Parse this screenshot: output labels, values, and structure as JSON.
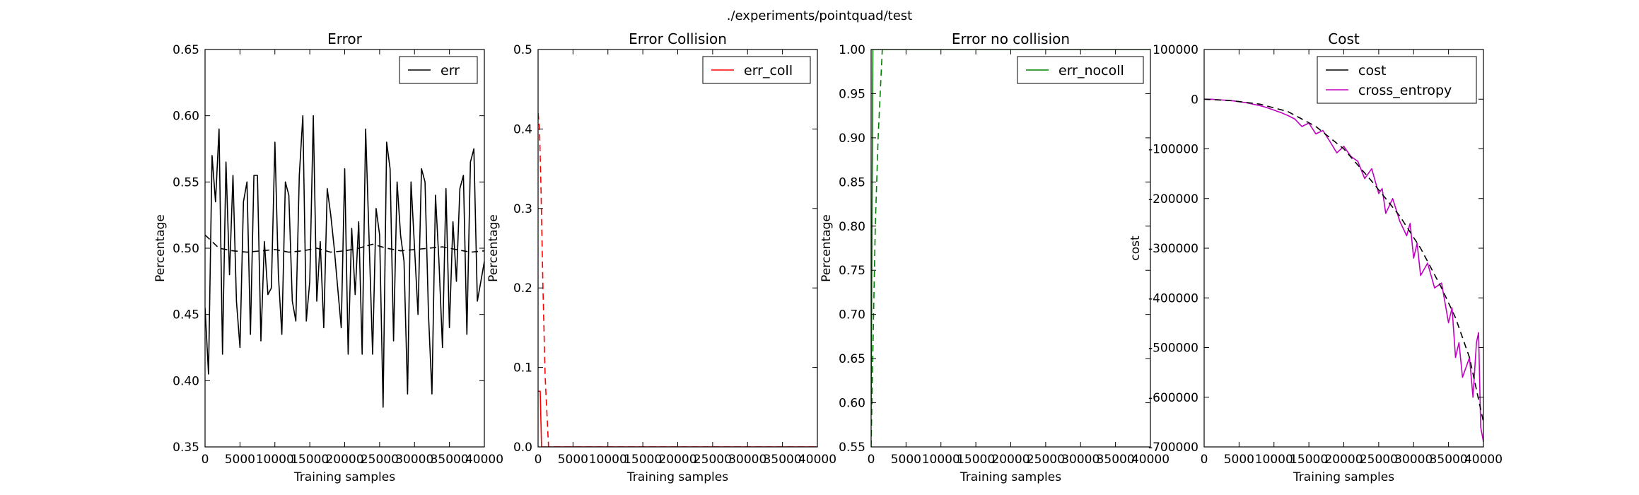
{
  "figure": {
    "suptitle": "./experiments/pointquad/test"
  },
  "chart_data": [
    {
      "type": "line",
      "title": "Error",
      "xlabel": "Training samples",
      "ylabel": "Percentage",
      "xlim": [
        0,
        40000
      ],
      "ylim": [
        0.35,
        0.65
      ],
      "xticks": [
        "0",
        "5000",
        "10000",
        "15000",
        "20000",
        "25000",
        "30000",
        "35000",
        "40000"
      ],
      "yticks": [
        "0.35",
        "0.40",
        "0.45",
        "0.50",
        "0.55",
        "0.60",
        "0.65"
      ],
      "legend_position": "top-right",
      "series": [
        {
          "name": "err",
          "color": "#000000",
          "style": "solid",
          "x": [
            0,
            500,
            1000,
            1500,
            2000,
            2500,
            3000,
            3500,
            4000,
            4500,
            5000,
            5500,
            6000,
            6500,
            7000,
            7500,
            8000,
            8500,
            9000,
            9500,
            10000,
            10500,
            11000,
            11500,
            12000,
            12500,
            13000,
            13500,
            14000,
            14500,
            15000,
            15500,
            16000,
            16500,
            17000,
            17500,
            18000,
            18500,
            19000,
            19500,
            20000,
            20500,
            21000,
            21500,
            22000,
            22500,
            23000,
            23500,
            24000,
            24500,
            25000,
            25500,
            26000,
            26500,
            27000,
            27500,
            28000,
            28500,
            29000,
            29500,
            30000,
            30500,
            31000,
            31500,
            32000,
            32500,
            33000,
            33500,
            34000,
            34500,
            35000,
            35500,
            36000,
            36500,
            37000,
            37500,
            38000,
            38500,
            39000,
            39500,
            40000
          ],
          "y": [
            0.455,
            0.405,
            0.57,
            0.535,
            0.59,
            0.42,
            0.565,
            0.48,
            0.555,
            0.46,
            0.425,
            0.535,
            0.55,
            0.435,
            0.555,
            0.555,
            0.43,
            0.505,
            0.465,
            0.47,
            0.58,
            0.48,
            0.435,
            0.55,
            0.54,
            0.46,
            0.445,
            0.555,
            0.6,
            0.445,
            0.475,
            0.6,
            0.46,
            0.505,
            0.44,
            0.545,
            0.525,
            0.5,
            0.47,
            0.44,
            0.56,
            0.42,
            0.515,
            0.465,
            0.52,
            0.42,
            0.59,
            0.505,
            0.42,
            0.53,
            0.51,
            0.38,
            0.58,
            0.56,
            0.43,
            0.55,
            0.51,
            0.49,
            0.39,
            0.55,
            0.5,
            0.45,
            0.56,
            0.55,
            0.45,
            0.39,
            0.54,
            0.49,
            0.425,
            0.545,
            0.44,
            0.52,
            0.475,
            0.545,
            0.555,
            0.435,
            0.565,
            0.575,
            0.46,
            0.475,
            0.49
          ]
        },
        {
          "name": "",
          "color": "#000000",
          "style": "dashed",
          "x": [
            0,
            1000,
            2000,
            4000,
            6000,
            8000,
            10000,
            12000,
            14000,
            16000,
            18000,
            20000,
            22000,
            24000,
            26000,
            28000,
            30000,
            32000,
            34000,
            36000,
            38000,
            40000
          ],
          "y": [
            0.51,
            0.505,
            0.5,
            0.498,
            0.497,
            0.498,
            0.499,
            0.497,
            0.498,
            0.5,
            0.497,
            0.498,
            0.5,
            0.503,
            0.5,
            0.498,
            0.499,
            0.5,
            0.501,
            0.499,
            0.497,
            0.498
          ]
        }
      ]
    },
    {
      "type": "line",
      "title": "Error Collision",
      "xlabel": "Training samples",
      "ylabel": "Percentage",
      "xlim": [
        0,
        40000
      ],
      "ylim": [
        0.0,
        0.5
      ],
      "xticks": [
        "0",
        "5000",
        "10000",
        "15000",
        "20000",
        "25000",
        "30000",
        "35000",
        "40000"
      ],
      "yticks": [
        "0.0",
        "0.1",
        "0.2",
        "0.3",
        "0.4",
        "0.5"
      ],
      "legend_position": "top-right",
      "series": [
        {
          "name": "err_coll",
          "color": "#ff0000",
          "style": "solid",
          "x": [
            0,
            300,
            500,
            700,
            40000
          ],
          "y": [
            0.07,
            0.07,
            0.0,
            0.0,
            0.0
          ]
        },
        {
          "name": "",
          "color": "#ff0000",
          "style": "dashed",
          "x": [
            0,
            200,
            400,
            700,
            1000,
            1500,
            40000
          ],
          "y": [
            0.42,
            0.4,
            0.33,
            0.2,
            0.09,
            0.0,
            0.0
          ]
        }
      ]
    },
    {
      "type": "line",
      "title": "Error no collision",
      "xlabel": "Training samples",
      "ylabel": "Percentage",
      "xlim": [
        0,
        40000
      ],
      "ylim": [
        0.55,
        1.0
      ],
      "xticks": [
        "0",
        "5000",
        "10000",
        "15000",
        "20000",
        "25000",
        "30000",
        "35000",
        "40000"
      ],
      "yticks": [
        "0.55",
        "0.60",
        "0.65",
        "0.70",
        "0.75",
        "0.80",
        "0.85",
        "0.90",
        "0.95",
        "1.00"
      ],
      "legend_position": "top-right",
      "series": [
        {
          "name": "err_nocoll",
          "color": "#008000",
          "style": "solid",
          "x": [
            0,
            250,
            500,
            40000
          ],
          "y": [
            0.59,
            1.0,
            1.0,
            1.0
          ]
        },
        {
          "name": "",
          "color": "#008000",
          "style": "dashed",
          "x": [
            0,
            300,
            600,
            1000,
            1600
          ],
          "y": [
            0.55,
            0.68,
            0.8,
            0.9,
            1.0
          ]
        }
      ]
    },
    {
      "type": "line",
      "title": "Cost",
      "xlabel": "Training samples",
      "ylabel": "cost",
      "xlim": [
        0,
        40000
      ],
      "ylim": [
        -700000,
        100000
      ],
      "xticks": [
        "0",
        "5000",
        "10000",
        "15000",
        "20000",
        "25000",
        "30000",
        "35000",
        "40000"
      ],
      "yticks": [
        "-700000",
        "-600000",
        "-500000",
        "-400000",
        "-300000",
        "-200000",
        "-100000",
        "0",
        "100000"
      ],
      "legend_position": "top-right",
      "series": [
        {
          "name": "cost",
          "color": "#000000",
          "style": "solid",
          "x": [],
          "y": []
        },
        {
          "name": "cross_entropy",
          "color": "#bf00bf",
          "style": "solid",
          "x": [
            0,
            1000,
            2000,
            3000,
            4000,
            5000,
            6000,
            7000,
            8000,
            9000,
            10000,
            11000,
            12000,
            13000,
            14000,
            15000,
            16000,
            17000,
            18000,
            19000,
            20000,
            21000,
            22000,
            23000,
            24000,
            25000,
            25500,
            26000,
            27000,
            28000,
            29000,
            29500,
            30000,
            30500,
            31000,
            32000,
            33000,
            34000,
            35000,
            35500,
            36000,
            36500,
            37000,
            37500,
            38000,
            38500,
            39000,
            39300,
            39600,
            40000
          ],
          "y": [
            0,
            0,
            -1000,
            -2000,
            -3000,
            -5000,
            -7000,
            -10000,
            -13000,
            -17000,
            -22000,
            -27000,
            -33000,
            -40000,
            -55000,
            -48000,
            -70000,
            -63000,
            -85000,
            -108000,
            -95000,
            -115000,
            -125000,
            -160000,
            -140000,
            -190000,
            -180000,
            -230000,
            -200000,
            -245000,
            -275000,
            -250000,
            -320000,
            -290000,
            -355000,
            -330000,
            -380000,
            -370000,
            -450000,
            -420000,
            -520000,
            -490000,
            -560000,
            -540000,
            -520000,
            -600000,
            -490000,
            -470000,
            -660000,
            -690000
          ]
        },
        {
          "name": "",
          "color": "#000000",
          "style": "dashed",
          "x": [
            0,
            4000,
            8000,
            12000,
            16000,
            20000,
            24000,
            28000,
            31000,
            34000,
            36000,
            38000,
            40000
          ],
          "y": [
            0,
            -3000,
            -10000,
            -25000,
            -55000,
            -100000,
            -165000,
            -235000,
            -300000,
            -380000,
            -440000,
            -520000,
            -650000
          ]
        }
      ]
    }
  ]
}
